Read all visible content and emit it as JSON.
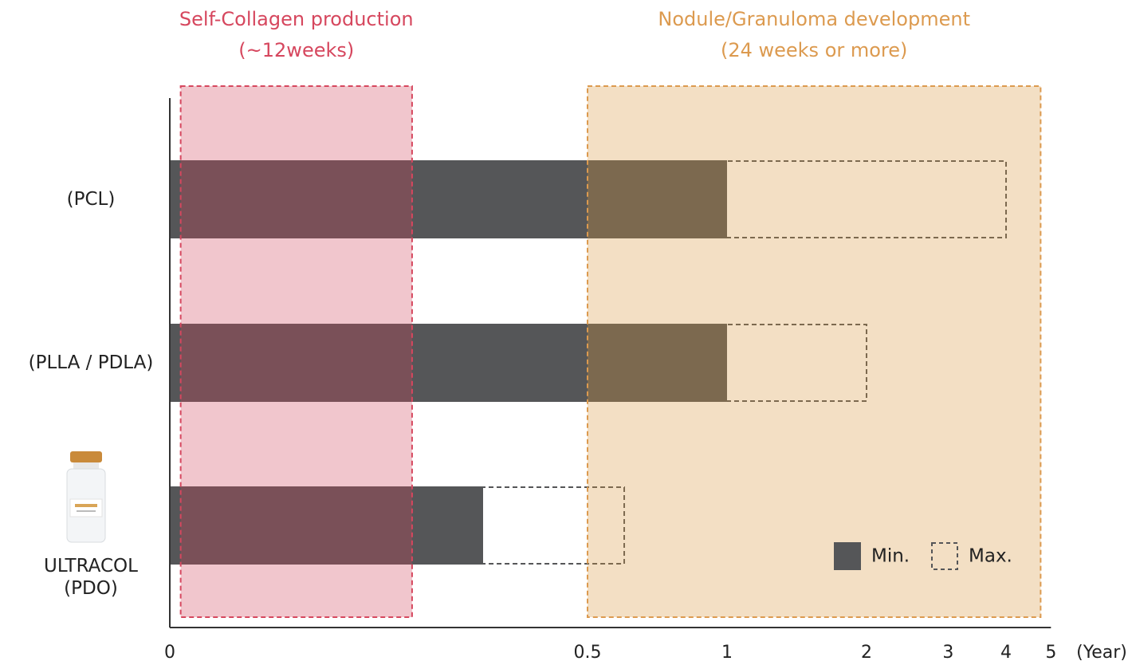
{
  "chart_data": {
    "type": "bar",
    "orientation": "horizontal",
    "categories": [
      "(PCL)",
      "(PLLA / PDLA)",
      "ULTRACOL\n(PDO)"
    ],
    "series": [
      {
        "name": "Min.",
        "color": "#555658",
        "style": "solid",
        "values": [
          1,
          1,
          0.375
        ]
      },
      {
        "name": "Max.",
        "color": "#555658",
        "style": "dashed",
        "values": [
          4,
          2,
          0.6
        ]
      }
    ],
    "xlim": [
      0,
      5
    ],
    "xticks": [
      0,
      0.5,
      1,
      2,
      3,
      4,
      5
    ],
    "x_label": "(Year)",
    "x_scale": {
      "linear_to": 0.5,
      "then": "log"
    },
    "regions": [
      {
        "label": "Self-Collagen production",
        "sublabel": "(~12weeks)",
        "from": 0.013,
        "to": 0.29,
        "color": "#d6475e",
        "fill": "rgba(208,65,88,0.3)"
      },
      {
        "label": "Nodule/Granuloma development",
        "sublabel": "(24 weeks or more)",
        "from": 0.5,
        "to": 4.75,
        "color": "#dc9a4f",
        "fill": "rgba(215,148,58,0.3)"
      }
    ],
    "legend": "bottom-right"
  }
}
